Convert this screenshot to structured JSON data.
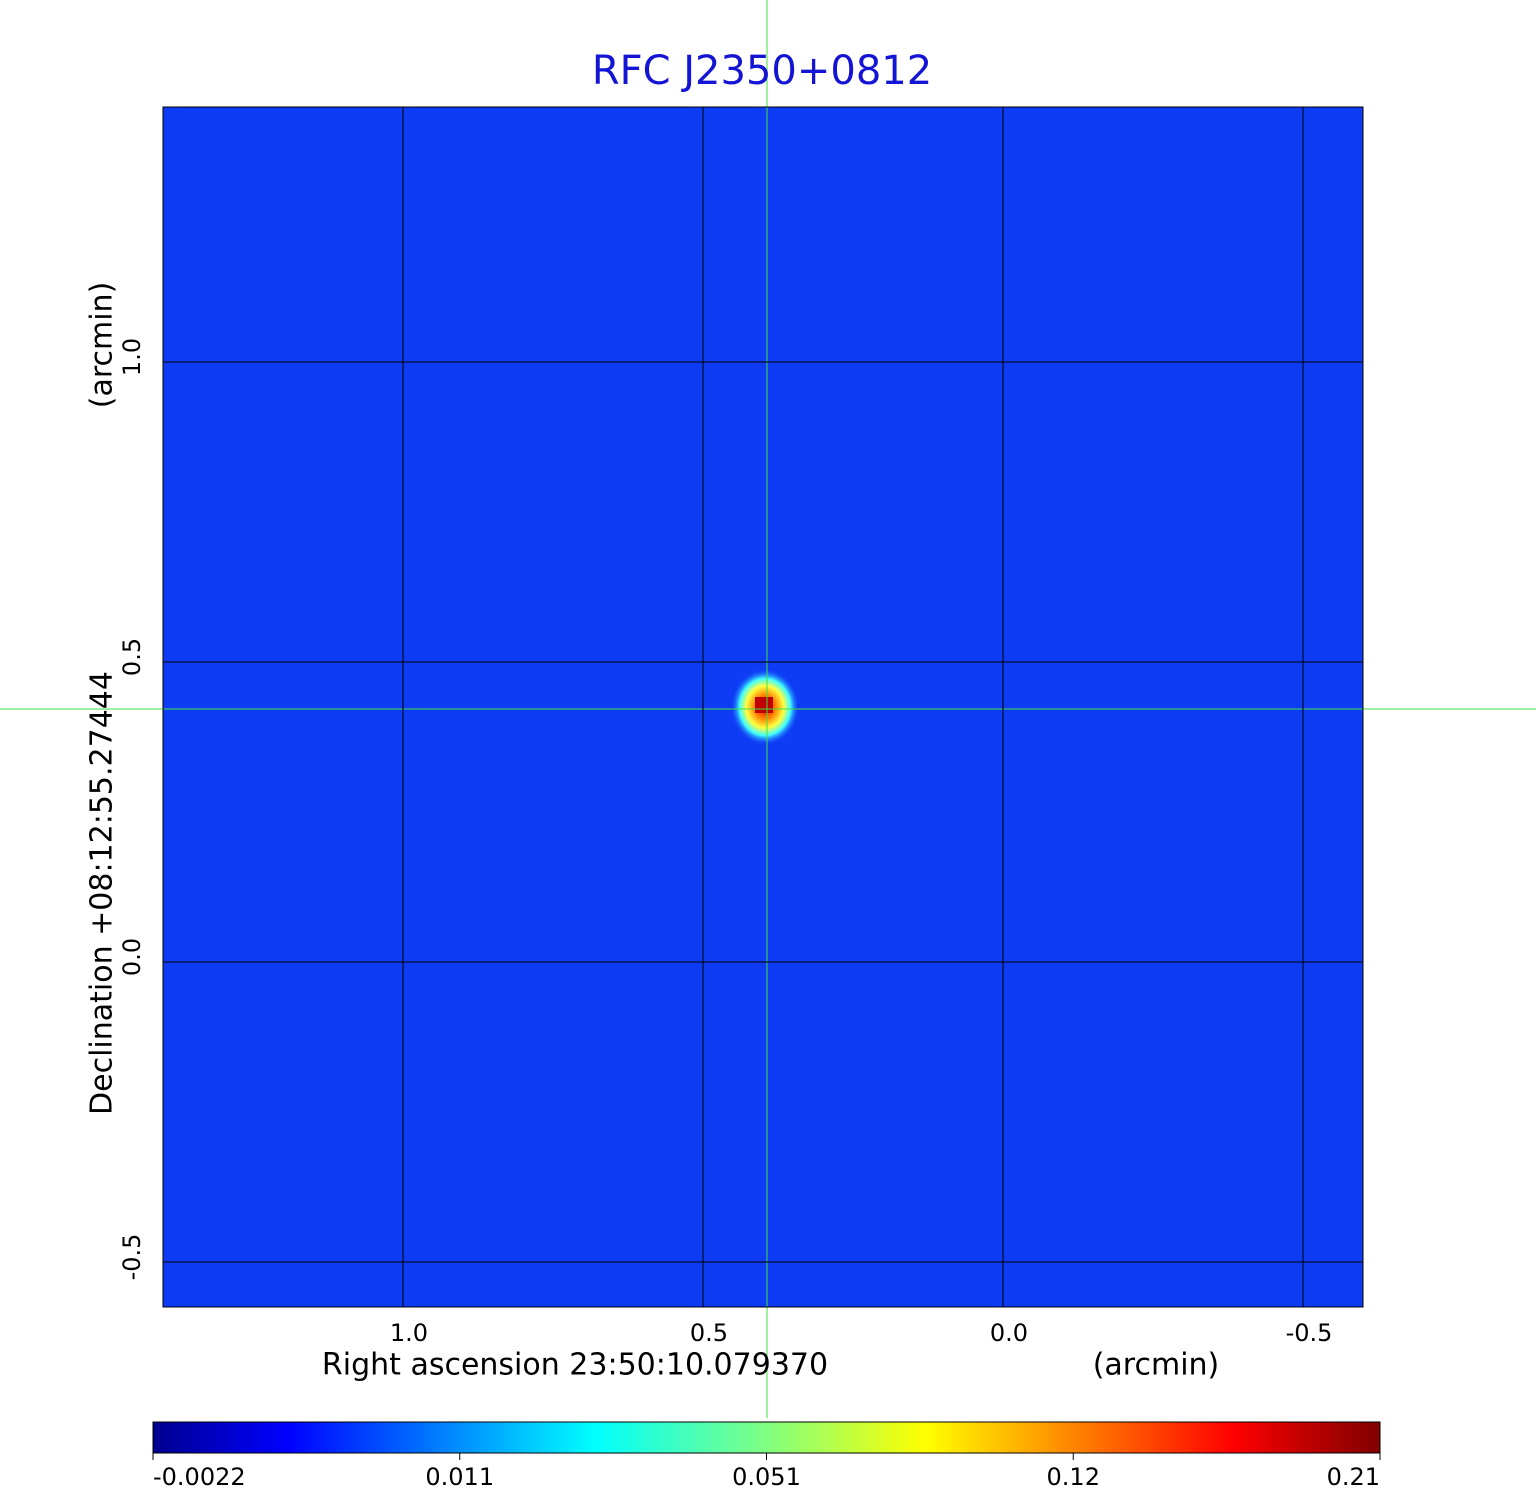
{
  "chart_data": {
    "type": "image",
    "title": "RFC J2350+0812",
    "x_label": "Right ascension  23:50:10.079370",
    "x_unit": "(arcmin)",
    "y_label": "Declination  +08:12:55.27444",
    "y_unit": "(arcmin)",
    "xlim": [
      1.4,
      -0.6
    ],
    "ylim": [
      -0.575,
      1.425
    ],
    "xticks": [
      {
        "value": 1,
        "label": "1.0"
      },
      0.5,
      {
        "value": 0,
        "label": "0.0"
      },
      -0.5
    ],
    "yticks": [
      {
        "value": 1,
        "label": "1.0"
      },
      0.5,
      {
        "value": 0,
        "label": "0.0"
      },
      -0.5
    ],
    "grid": true,
    "colorbar_ticks": [
      -0.0022,
      0.011,
      0.051,
      0.12,
      0.21
    ]
  }
}
